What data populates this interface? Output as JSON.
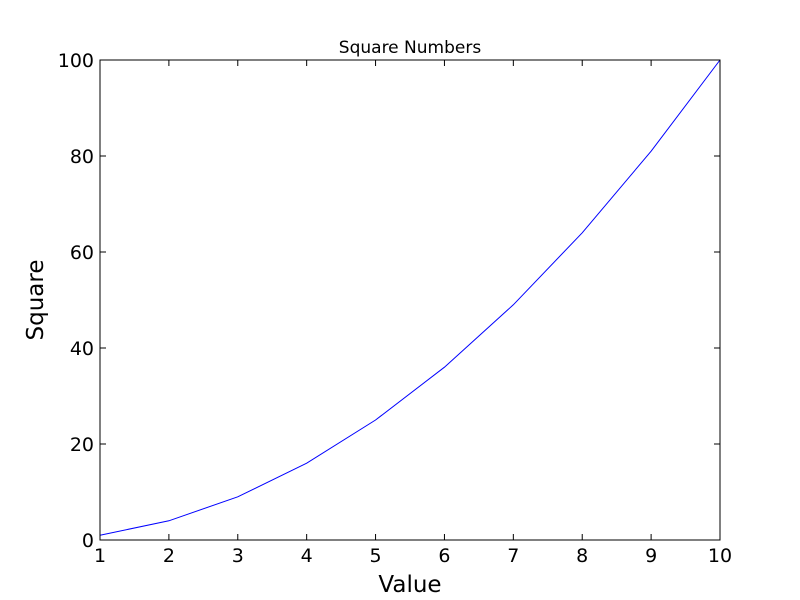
{
  "chart_data": {
    "type": "line",
    "title": "Square Numbers",
    "xlabel": "Value",
    "ylabel": "Square",
    "xlim": [
      1,
      10
    ],
    "ylim": [
      0,
      100
    ],
    "x_ticks": [
      "1",
      "2",
      "3",
      "4",
      "5",
      "6",
      "7",
      "8",
      "9",
      "10"
    ],
    "y_ticks": [
      "0",
      "20",
      "40",
      "60",
      "80",
      "100"
    ],
    "grid": false,
    "series": [
      {
        "color": "#0000ff",
        "x": [
          1,
          2,
          3,
          4,
          5,
          6,
          7,
          8,
          9,
          10
        ],
        "y": [
          1,
          4,
          9,
          16,
          25,
          36,
          49,
          64,
          81,
          100
        ]
      }
    ]
  }
}
